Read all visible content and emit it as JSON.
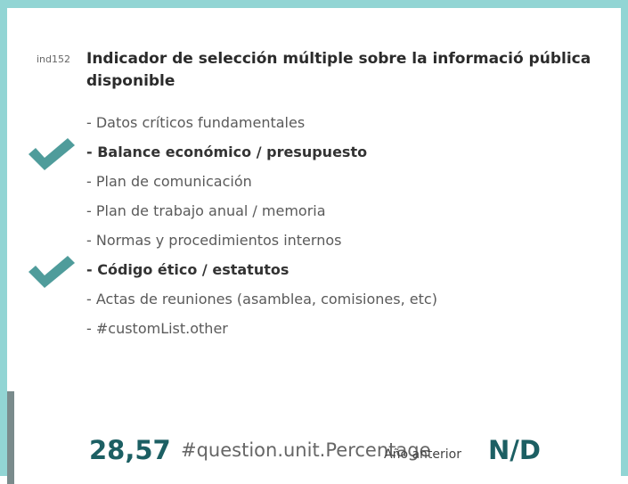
{
  "indicator": {
    "id": "ind152",
    "title": "Indicador de selección múltiple sobre la informació pública disponible",
    "items": [
      {
        "label": "- Datos críticos fundamentales",
        "checked": false
      },
      {
        "label": "- Balance económico / presupuesto",
        "checked": true
      },
      {
        "label": "- Plan de comunicación",
        "checked": false
      },
      {
        "label": "- Plan de trabajo anual / memoria",
        "checked": false
      },
      {
        "label": "- Normas y procedimientos internos",
        "checked": false
      },
      {
        "label": "- Código ético / estatutos",
        "checked": true
      },
      {
        "label": "- Actas de reuniones (asamblea, comisiones, etc)",
        "checked": false
      },
      {
        "label": "- #customList.other",
        "checked": false
      }
    ],
    "value": "28,57",
    "unit": "#question.unit.Percentage",
    "previous_label": "Año anterior",
    "previous_value": "N/D"
  }
}
